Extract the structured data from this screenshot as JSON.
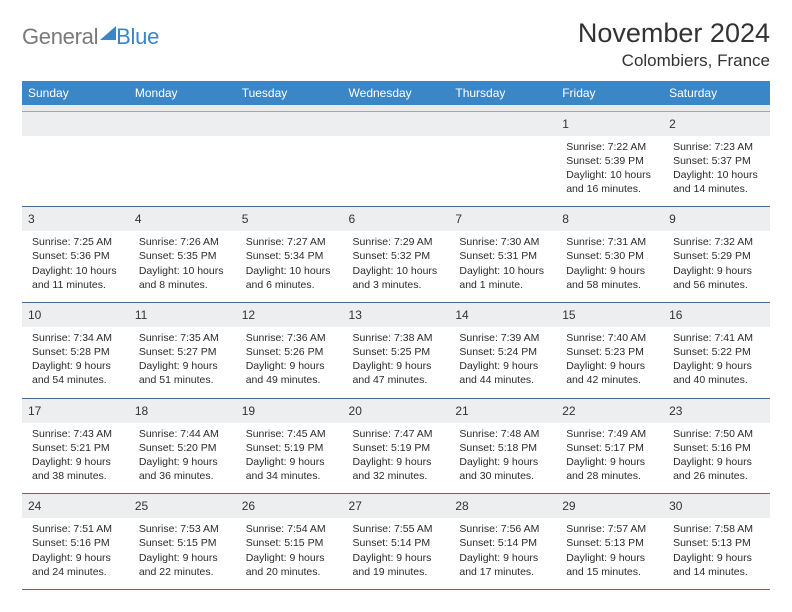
{
  "brand": {
    "text1": "General",
    "text2": "Blue"
  },
  "title": "November 2024",
  "location": "Colombiers, France",
  "dayHeaders": [
    "Sunday",
    "Monday",
    "Tuesday",
    "Wednesday",
    "Thursday",
    "Friday",
    "Saturday"
  ],
  "weeks": [
    [
      null,
      null,
      null,
      null,
      null,
      {
        "n": "1",
        "sr": "7:22 AM",
        "ss": "5:39 PM",
        "dl1": "Daylight: 10 hours",
        "dl2": "and 16 minutes."
      },
      {
        "n": "2",
        "sr": "7:23 AM",
        "ss": "5:37 PM",
        "dl1": "Daylight: 10 hours",
        "dl2": "and 14 minutes."
      }
    ],
    [
      {
        "n": "3",
        "sr": "7:25 AM",
        "ss": "5:36 PM",
        "dl1": "Daylight: 10 hours",
        "dl2": "and 11 minutes."
      },
      {
        "n": "4",
        "sr": "7:26 AM",
        "ss": "5:35 PM",
        "dl1": "Daylight: 10 hours",
        "dl2": "and 8 minutes."
      },
      {
        "n": "5",
        "sr": "7:27 AM",
        "ss": "5:34 PM",
        "dl1": "Daylight: 10 hours",
        "dl2": "and 6 minutes."
      },
      {
        "n": "6",
        "sr": "7:29 AM",
        "ss": "5:32 PM",
        "dl1": "Daylight: 10 hours",
        "dl2": "and 3 minutes."
      },
      {
        "n": "7",
        "sr": "7:30 AM",
        "ss": "5:31 PM",
        "dl1": "Daylight: 10 hours",
        "dl2": "and 1 minute."
      },
      {
        "n": "8",
        "sr": "7:31 AM",
        "ss": "5:30 PM",
        "dl1": "Daylight: 9 hours",
        "dl2": "and 58 minutes."
      },
      {
        "n": "9",
        "sr": "7:32 AM",
        "ss": "5:29 PM",
        "dl1": "Daylight: 9 hours",
        "dl2": "and 56 minutes."
      }
    ],
    [
      {
        "n": "10",
        "sr": "7:34 AM",
        "ss": "5:28 PM",
        "dl1": "Daylight: 9 hours",
        "dl2": "and 54 minutes."
      },
      {
        "n": "11",
        "sr": "7:35 AM",
        "ss": "5:27 PM",
        "dl1": "Daylight: 9 hours",
        "dl2": "and 51 minutes."
      },
      {
        "n": "12",
        "sr": "7:36 AM",
        "ss": "5:26 PM",
        "dl1": "Daylight: 9 hours",
        "dl2": "and 49 minutes."
      },
      {
        "n": "13",
        "sr": "7:38 AM",
        "ss": "5:25 PM",
        "dl1": "Daylight: 9 hours",
        "dl2": "and 47 minutes."
      },
      {
        "n": "14",
        "sr": "7:39 AM",
        "ss": "5:24 PM",
        "dl1": "Daylight: 9 hours",
        "dl2": "and 44 minutes."
      },
      {
        "n": "15",
        "sr": "7:40 AM",
        "ss": "5:23 PM",
        "dl1": "Daylight: 9 hours",
        "dl2": "and 42 minutes."
      },
      {
        "n": "16",
        "sr": "7:41 AM",
        "ss": "5:22 PM",
        "dl1": "Daylight: 9 hours",
        "dl2": "and 40 minutes."
      }
    ],
    [
      {
        "n": "17",
        "sr": "7:43 AM",
        "ss": "5:21 PM",
        "dl1": "Daylight: 9 hours",
        "dl2": "and 38 minutes."
      },
      {
        "n": "18",
        "sr": "7:44 AM",
        "ss": "5:20 PM",
        "dl1": "Daylight: 9 hours",
        "dl2": "and 36 minutes."
      },
      {
        "n": "19",
        "sr": "7:45 AM",
        "ss": "5:19 PM",
        "dl1": "Daylight: 9 hours",
        "dl2": "and 34 minutes."
      },
      {
        "n": "20",
        "sr": "7:47 AM",
        "ss": "5:19 PM",
        "dl1": "Daylight: 9 hours",
        "dl2": "and 32 minutes."
      },
      {
        "n": "21",
        "sr": "7:48 AM",
        "ss": "5:18 PM",
        "dl1": "Daylight: 9 hours",
        "dl2": "and 30 minutes."
      },
      {
        "n": "22",
        "sr": "7:49 AM",
        "ss": "5:17 PM",
        "dl1": "Daylight: 9 hours",
        "dl2": "and 28 minutes."
      },
      {
        "n": "23",
        "sr": "7:50 AM",
        "ss": "5:16 PM",
        "dl1": "Daylight: 9 hours",
        "dl2": "and 26 minutes."
      }
    ],
    [
      {
        "n": "24",
        "sr": "7:51 AM",
        "ss": "5:16 PM",
        "dl1": "Daylight: 9 hours",
        "dl2": "and 24 minutes."
      },
      {
        "n": "25",
        "sr": "7:53 AM",
        "ss": "5:15 PM",
        "dl1": "Daylight: 9 hours",
        "dl2": "and 22 minutes."
      },
      {
        "n": "26",
        "sr": "7:54 AM",
        "ss": "5:15 PM",
        "dl1": "Daylight: 9 hours",
        "dl2": "and 20 minutes."
      },
      {
        "n": "27",
        "sr": "7:55 AM",
        "ss": "5:14 PM",
        "dl1": "Daylight: 9 hours",
        "dl2": "and 19 minutes."
      },
      {
        "n": "28",
        "sr": "7:56 AM",
        "ss": "5:14 PM",
        "dl1": "Daylight: 9 hours",
        "dl2": "and 17 minutes."
      },
      {
        "n": "29",
        "sr": "7:57 AM",
        "ss": "5:13 PM",
        "dl1": "Daylight: 9 hours",
        "dl2": "and 15 minutes."
      },
      {
        "n": "30",
        "sr": "7:58 AM",
        "ss": "5:13 PM",
        "dl1": "Daylight: 9 hours",
        "dl2": "and 14 minutes."
      }
    ]
  ],
  "labels": {
    "sunrise": "Sunrise: ",
    "sunset": "Sunset: "
  },
  "colors": {
    "header_bg": "#3b86c6",
    "header_text": "#ffffff",
    "daynum_bg": "#eceef0",
    "row_border": "#4a6d8f",
    "text": "#2b2b2b"
  }
}
